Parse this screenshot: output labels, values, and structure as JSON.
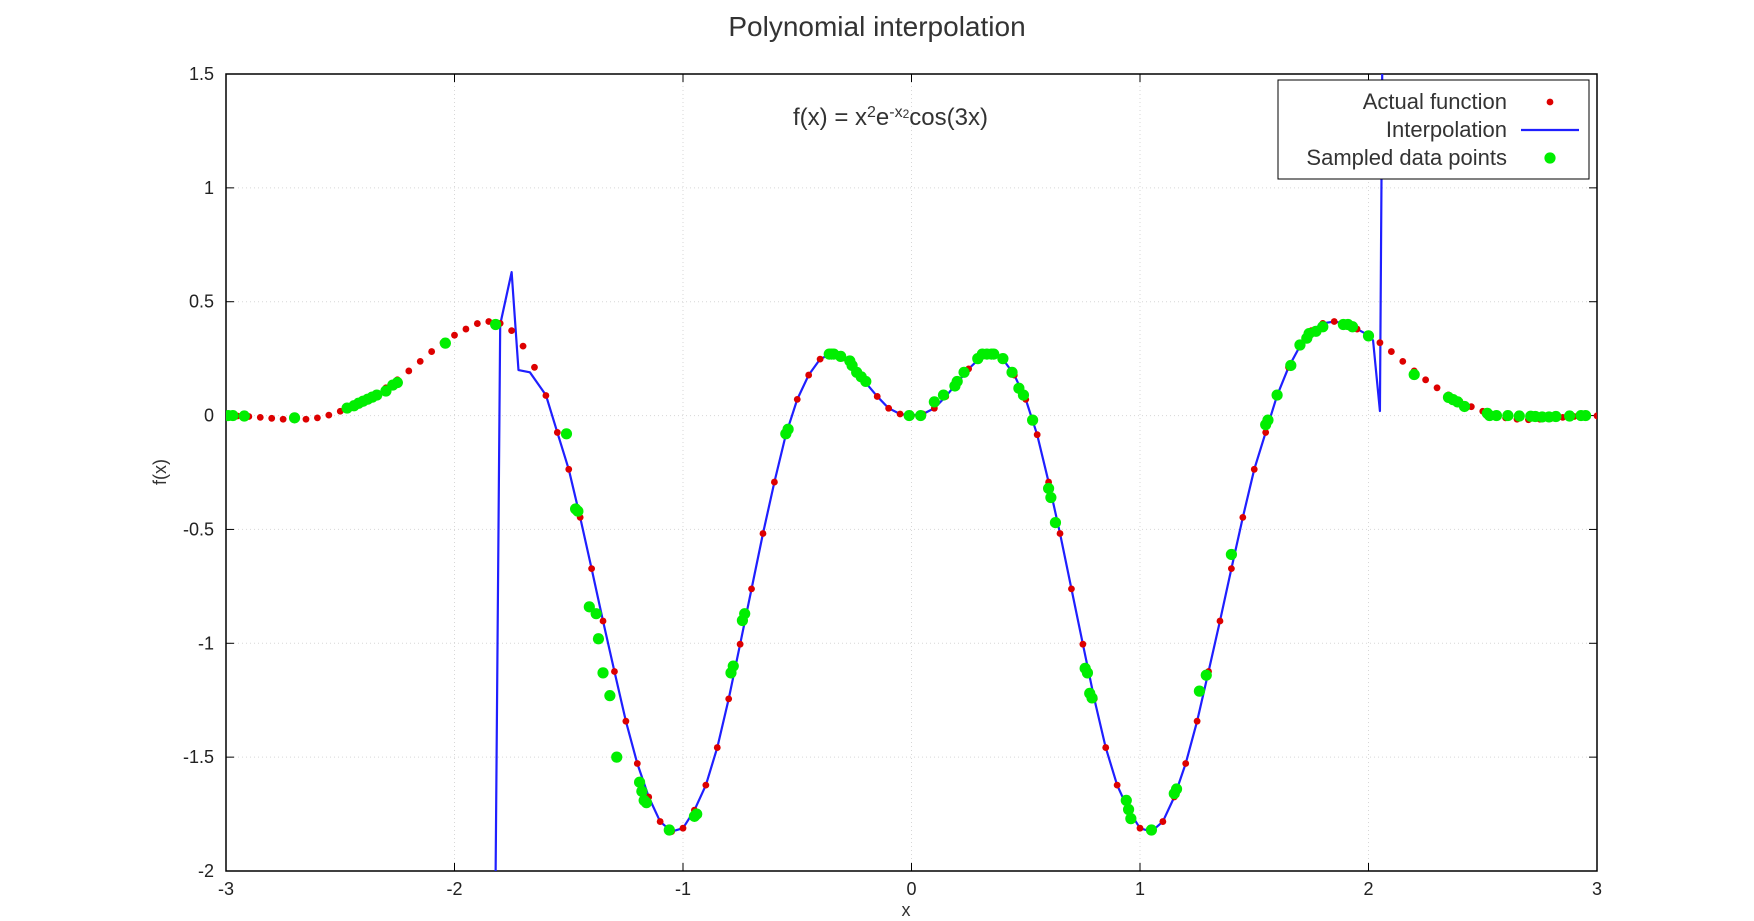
{
  "chart_data": {
    "type": "scatter",
    "title": "Polynomial interpolation",
    "xlabel": "x",
    "ylabel": "f(x)",
    "xlim": [
      -3,
      3
    ],
    "ylim": [
      -2,
      1.5
    ],
    "xticks": [
      -3,
      -2,
      -1,
      0,
      1,
      2,
      3
    ],
    "yticks": [
      -2,
      -1.5,
      -1,
      -0.5,
      0,
      0.5,
      1,
      1.5
    ],
    "xtick_labels": [
      "-3",
      "-2",
      "-1",
      "0",
      "1",
      "2",
      "3"
    ],
    "ytick_labels": [
      "-2",
      "-1.5",
      "-1",
      "-0.5",
      "0",
      "0.5",
      "1",
      "1.5"
    ],
    "grid": true,
    "legend_position": "top-right",
    "annotation": {
      "base": "f(x) = x",
      "sup1": "2",
      "mid": "e",
      "sup2": "-x",
      "sup2b": "2",
      "tail": "cos(3x)"
    },
    "series": [
      {
        "name": "Actual function",
        "kind": "points",
        "color": "#dd0000",
        "x": [
          -3.0,
          -2.95,
          -2.9,
          -2.85,
          -2.8,
          -2.75,
          -2.7,
          -2.65,
          -2.6,
          -2.55,
          -2.5,
          -2.45,
          -2.4,
          -2.35,
          -2.3,
          -2.25,
          -2.2,
          -2.15,
          -2.1,
          -2.05,
          -2.0,
          -1.95,
          -1.9,
          -1.85,
          -1.8,
          -1.75,
          -1.7,
          -1.65,
          -1.6,
          -1.55,
          -1.5,
          -1.45,
          -1.4,
          -1.35,
          -1.3,
          -1.25,
          -1.2,
          -1.15,
          -1.1,
          -1.05,
          -1.0,
          -0.95,
          -0.9,
          -0.85,
          -0.8,
          -0.75,
          -0.7,
          -0.65,
          -0.6,
          -0.55,
          -0.5,
          -0.45,
          -0.4,
          -0.35,
          -0.3,
          -0.25,
          -0.2,
          -0.15,
          -0.1,
          -0.05,
          0.0,
          0.05,
          0.1,
          0.15,
          0.2,
          0.25,
          0.3,
          0.35,
          0.4,
          0.45,
          0.5,
          0.55,
          0.6,
          0.65,
          0.7,
          0.75,
          0.8,
          0.85,
          0.9,
          0.95,
          1.0,
          1.05,
          1.1,
          1.15,
          1.2,
          1.25,
          1.3,
          1.35,
          1.4,
          1.45,
          1.5,
          1.55,
          1.6,
          1.65,
          1.7,
          1.75,
          1.8,
          1.85,
          1.9,
          1.95,
          2.0,
          2.05,
          2.1,
          2.15,
          2.2,
          2.25,
          2.3,
          2.35,
          2.4,
          2.45,
          2.5,
          2.55,
          2.6,
          2.65,
          2.7,
          2.75,
          2.8,
          2.85,
          2.9,
          2.95,
          3.0
        ],
        "y": [
          -0.001,
          -0.002,
          -0.004,
          -0.008,
          -0.012,
          -0.016,
          -0.018,
          -0.016,
          -0.01,
          0.002,
          0.019,
          0.039,
          0.063,
          0.091,
          0.122,
          0.157,
          0.196,
          0.238,
          0.281,
          0.32,
          0.353,
          0.38,
          0.404,
          0.413,
          0.405,
          0.373,
          0.305,
          0.212,
          0.088,
          -0.074,
          -0.236,
          -0.447,
          -0.672,
          -0.902,
          -1.124,
          -1.342,
          -1.528,
          -1.675,
          -1.783,
          -1.827,
          -1.812,
          -1.733,
          -1.623,
          -1.458,
          -1.244,
          -1.004,
          -0.761,
          -0.518,
          -0.292,
          -0.084,
          0.071,
          0.178,
          0.248,
          0.272,
          0.253,
          0.205,
          0.144,
          0.084,
          0.032,
          0.007,
          0.0,
          0.007,
          0.032,
          0.084,
          0.144,
          0.205,
          0.253,
          0.272,
          0.248,
          0.178,
          0.071,
          -0.084,
          -0.292,
          -0.518,
          -0.761,
          -1.004,
          -1.244,
          -1.458,
          -1.623,
          -1.733,
          -1.812,
          -1.827,
          -1.783,
          -1.675,
          -1.528,
          -1.342,
          -1.124,
          -0.902,
          -0.672,
          -0.447,
          -0.236,
          -0.074,
          0.088,
          0.212,
          0.305,
          0.373,
          0.405,
          0.413,
          0.404,
          0.38,
          0.353,
          0.32,
          0.281,
          0.238,
          0.196,
          0.157,
          0.122,
          0.091,
          0.063,
          0.039,
          0.019,
          0.002,
          -0.01,
          -0.016,
          -0.018,
          -0.016,
          -0.012,
          -0.008,
          -0.004,
          -0.002,
          -0.001
        ]
      },
      {
        "name": "Interpolation",
        "kind": "line",
        "color": "#1f1fff",
        "x": [
          -1.82,
          -1.8,
          -1.75,
          -1.72,
          -1.67,
          -1.6,
          -1.55,
          -1.5,
          -1.45,
          -1.4,
          -1.35,
          -1.3,
          -1.25,
          -1.2,
          -1.15,
          -1.1,
          -1.05,
          -1.0,
          -0.95,
          -0.9,
          -0.85,
          -0.8,
          -0.75,
          -0.7,
          -0.65,
          -0.6,
          -0.55,
          -0.5,
          -0.45,
          -0.4,
          -0.35,
          -0.3,
          -0.25,
          -0.2,
          -0.15,
          -0.1,
          -0.05,
          0.0,
          0.05,
          0.1,
          0.15,
          0.2,
          0.25,
          0.3,
          0.35,
          0.4,
          0.45,
          0.5,
          0.55,
          0.6,
          0.65,
          0.7,
          0.75,
          0.8,
          0.85,
          0.9,
          0.95,
          1.0,
          1.05,
          1.1,
          1.15,
          1.2,
          1.25,
          1.3,
          1.35,
          1.4,
          1.45,
          1.5,
          1.55,
          1.6,
          1.65,
          1.7,
          1.75,
          1.8,
          1.85,
          1.9,
          1.95,
          2.0,
          2.02,
          2.05,
          2.06
        ],
        "y": [
          -2.0,
          0.4,
          0.63,
          0.2,
          0.19,
          0.09,
          -0.074,
          -0.236,
          -0.447,
          -0.672,
          -0.902,
          -1.124,
          -1.342,
          -1.528,
          -1.675,
          -1.783,
          -1.827,
          -1.812,
          -1.733,
          -1.623,
          -1.458,
          -1.244,
          -1.004,
          -0.761,
          -0.518,
          -0.292,
          -0.084,
          0.071,
          0.178,
          0.248,
          0.272,
          0.253,
          0.205,
          0.144,
          0.084,
          0.032,
          0.007,
          0.0,
          0.007,
          0.032,
          0.084,
          0.144,
          0.205,
          0.253,
          0.272,
          0.248,
          0.178,
          0.071,
          -0.084,
          -0.292,
          -0.518,
          -0.761,
          -1.004,
          -1.244,
          -1.458,
          -1.623,
          -1.733,
          -1.812,
          -1.827,
          -1.783,
          -1.675,
          -1.528,
          -1.342,
          -1.124,
          -0.902,
          -0.672,
          -0.447,
          -0.236,
          -0.074,
          0.088,
          0.212,
          0.305,
          0.373,
          0.405,
          0.413,
          0.404,
          0.38,
          0.353,
          0.33,
          0.02,
          1.5
        ]
      },
      {
        "name": "Sampled data points",
        "kind": "points",
        "color": "#00ee00",
        "x": [
          -2.99,
          -2.97,
          -2.92,
          -2.7,
          -2.47,
          -2.44,
          -2.42,
          -2.4,
          -2.38,
          -2.36,
          -2.34,
          -2.3,
          -2.27,
          -2.25,
          -2.04,
          -1.82,
          -1.51,
          -1.47,
          -1.46,
          -1.41,
          -1.38,
          -1.37,
          -1.35,
          -1.32,
          -1.29,
          -1.19,
          -1.18,
          -1.17,
          -1.16,
          -1.06,
          -0.95,
          -0.94,
          -0.79,
          -0.78,
          -0.74,
          -0.73,
          -0.55,
          -0.54,
          -0.36,
          -0.35,
          -0.34,
          -0.31,
          -0.27,
          -0.26,
          -0.24,
          -0.22,
          -0.2,
          -0.01,
          0.04,
          0.1,
          0.14,
          0.19,
          0.2,
          0.23,
          0.29,
          0.31,
          0.33,
          0.35,
          0.36,
          0.4,
          0.44,
          0.47,
          0.49,
          0.53,
          0.6,
          0.61,
          0.63,
          0.76,
          0.77,
          0.78,
          0.79,
          0.94,
          0.95,
          0.96,
          1.05,
          1.15,
          1.16,
          1.26,
          1.29,
          1.4,
          1.55,
          1.56,
          1.6,
          1.66,
          1.7,
          1.73,
          1.74,
          1.77,
          1.8,
          1.89,
          1.91,
          1.93,
          2.0,
          2.2,
          2.35,
          2.37,
          2.39,
          2.42,
          2.52,
          2.53,
          2.56,
          2.61,
          2.66,
          2.71,
          2.73,
          2.76,
          2.79,
          2.82,
          2.88,
          2.93,
          2.95
        ],
        "y": [
          0.0,
          0.0,
          -0.002,
          -0.01,
          0.033,
          0.043,
          0.054,
          0.063,
          0.072,
          0.081,
          0.09,
          0.108,
          0.134,
          0.145,
          0.318,
          0.4,
          -0.08,
          -0.41,
          -0.42,
          -0.84,
          -0.87,
          -0.98,
          -1.13,
          -1.23,
          -1.5,
          -1.61,
          -1.65,
          -1.69,
          -1.7,
          -1.82,
          -1.76,
          -1.75,
          -1.13,
          -1.1,
          -0.9,
          -0.87,
          -0.08,
          -0.06,
          0.27,
          0.27,
          0.27,
          0.26,
          0.24,
          0.22,
          0.19,
          0.17,
          0.15,
          0.0,
          0.0,
          0.06,
          0.09,
          0.13,
          0.15,
          0.19,
          0.25,
          0.27,
          0.27,
          0.27,
          0.27,
          0.25,
          0.19,
          0.12,
          0.09,
          -0.02,
          -0.32,
          -0.36,
          -0.47,
          -1.11,
          -1.13,
          -1.22,
          -1.24,
          -1.69,
          -1.73,
          -1.77,
          -1.82,
          -1.66,
          -1.64,
          -1.21,
          -1.14,
          -0.61,
          -0.04,
          -0.02,
          0.09,
          0.22,
          0.31,
          0.34,
          0.36,
          0.37,
          0.39,
          0.4,
          0.4,
          0.39,
          0.35,
          0.18,
          0.08,
          0.07,
          0.06,
          0.04,
          0.01,
          0.0,
          0.0,
          0.0,
          -0.002,
          -0.003,
          -0.004,
          -0.006,
          -0.006,
          -0.004,
          -0.002,
          0.0,
          0.0
        ]
      }
    ]
  }
}
